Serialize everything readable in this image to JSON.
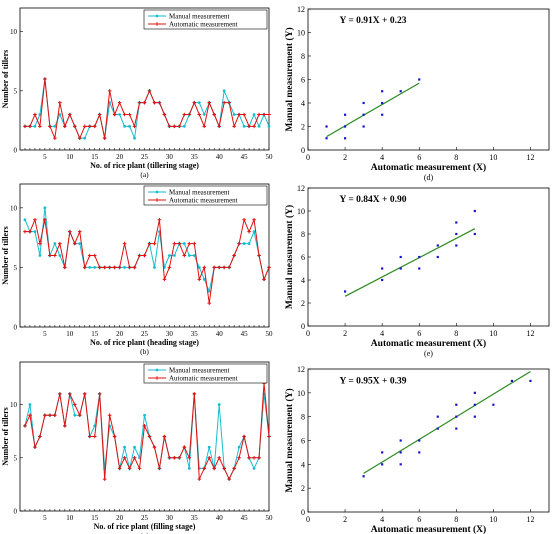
{
  "colors": {
    "manual": "#17becf",
    "automatic": "#e01010",
    "scatter": "#1515c8",
    "fit": "#2a8a1e"
  },
  "chart_data": [
    {
      "type": "line",
      "caption": "(a)",
      "xlabel": "No. of rice plant (tillering stage)",
      "ylabel": "Number of tillers",
      "xlim": [
        0,
        50
      ],
      "ylim": [
        0,
        12
      ],
      "xticks": [
        5,
        10,
        15,
        20,
        25,
        30,
        35,
        40,
        45,
        50
      ],
      "yticks": [
        0,
        5,
        10
      ],
      "legend": "top-right",
      "x": [
        1,
        2,
        3,
        4,
        5,
        6,
        7,
        8,
        9,
        10,
        11,
        12,
        13,
        14,
        15,
        16,
        17,
        18,
        19,
        20,
        21,
        22,
        23,
        24,
        25,
        26,
        27,
        28,
        29,
        30,
        31,
        32,
        33,
        34,
        35,
        36,
        37,
        38,
        39,
        40,
        41,
        42,
        43,
        44,
        45,
        46,
        47,
        48,
        49,
        50
      ],
      "series": [
        {
          "name": "Manual measurement",
          "values": [
            2,
            2,
            2,
            3,
            6,
            2,
            2,
            3,
            2,
            3,
            2,
            1,
            1,
            2,
            2,
            3,
            1,
            4,
            3,
            3,
            2,
            2,
            1,
            4,
            4,
            5,
            4,
            4,
            3,
            2,
            2,
            2,
            2,
            3,
            4,
            4,
            3,
            4,
            3,
            2,
            5,
            4,
            3,
            3,
            2,
            2,
            3,
            2,
            3,
            2
          ]
        },
        {
          "name": "Automatic measurement",
          "values": [
            2,
            2,
            3,
            2,
            6,
            2,
            1,
            4,
            2,
            3,
            2,
            1,
            2,
            2,
            2,
            3,
            1,
            5,
            3,
            4,
            3,
            3,
            2,
            4,
            4,
            5,
            4,
            4,
            3,
            2,
            2,
            2,
            3,
            3,
            4,
            3,
            2,
            4,
            3,
            2,
            4,
            4,
            2,
            3,
            3,
            2,
            2,
            3,
            3,
            3
          ]
        }
      ]
    },
    {
      "type": "scatter",
      "caption": "(d)",
      "equation": "Y = 0.91X + 0.23",
      "xlabel": "Automatic measurement (X)",
      "ylabel": "Manual measurement (Y)",
      "xlim": [
        0,
        13
      ],
      "ylim": [
        0,
        12
      ],
      "xticks": [
        0,
        2,
        4,
        6,
        8,
        10,
        12
      ],
      "yticks": [
        0,
        2,
        4,
        6,
        8,
        10,
        12
      ],
      "points": [
        [
          1,
          2
        ],
        [
          1,
          1
        ],
        [
          2,
          3
        ],
        [
          2,
          2
        ],
        [
          2,
          1
        ],
        [
          3,
          4
        ],
        [
          3,
          2
        ],
        [
          3,
          3
        ],
        [
          4,
          5
        ],
        [
          4,
          3
        ],
        [
          4,
          4
        ],
        [
          5,
          5
        ],
        [
          6,
          6
        ]
      ],
      "fit": {
        "slope": 0.91,
        "intercept": 0.23,
        "xrange": [
          1,
          6
        ]
      }
    },
    {
      "type": "line",
      "caption": "(b)",
      "xlabel": "No. of rice plant (heading stage)",
      "ylabel": "Number of tillers",
      "xlim": [
        0,
        50
      ],
      "ylim": [
        0,
        12
      ],
      "xticks": [
        5,
        10,
        15,
        20,
        25,
        30,
        35,
        40,
        45,
        50
      ],
      "yticks": [
        0,
        5,
        10
      ],
      "legend": "top-right",
      "x": [
        1,
        2,
        3,
        4,
        5,
        6,
        7,
        8,
        9,
        10,
        11,
        12,
        13,
        14,
        15,
        16,
        17,
        18,
        19,
        20,
        21,
        22,
        23,
        24,
        25,
        26,
        27,
        28,
        29,
        30,
        31,
        32,
        33,
        34,
        35,
        36,
        37,
        38,
        39,
        40,
        41,
        42,
        43,
        44,
        45,
        46,
        47,
        48,
        49,
        50
      ],
      "series": [
        {
          "name": "Manual measurement",
          "values": [
            9,
            8,
            8,
            6,
            10,
            6,
            7,
            6,
            5,
            8,
            7,
            7,
            5,
            5,
            5,
            5,
            5,
            5,
            5,
            5,
            5,
            5,
            5,
            6,
            6,
            7,
            5,
            8,
            5,
            6,
            6,
            7,
            7,
            6,
            6,
            5,
            4,
            3,
            5,
            5,
            5,
            5,
            6,
            7,
            7,
            7,
            8,
            6,
            4,
            5
          ]
        },
        {
          "name": "Automatic measurement",
          "values": [
            8,
            8,
            9,
            7,
            9,
            6,
            6,
            7,
            5,
            8,
            7,
            8,
            5,
            6,
            6,
            5,
            5,
            5,
            5,
            5,
            7,
            5,
            5,
            6,
            6,
            7,
            7,
            9,
            4,
            5,
            7,
            7,
            6,
            7,
            7,
            4,
            5,
            2,
            5,
            5,
            5,
            5,
            6,
            7,
            9,
            8,
            9,
            6,
            4,
            5
          ]
        }
      ]
    },
    {
      "type": "scatter",
      "caption": "(e)",
      "equation": "Y = 0.84X + 0.90",
      "xlabel": "Automatic measurement (X)",
      "ylabel": "Manual measurement (Y)",
      "xlim": [
        0,
        13
      ],
      "ylim": [
        0,
        12
      ],
      "xticks": [
        0,
        2,
        4,
        6,
        8,
        10,
        12
      ],
      "yticks": [
        0,
        2,
        4,
        6,
        8,
        10,
        12
      ],
      "points": [
        [
          2,
          3
        ],
        [
          4,
          5
        ],
        [
          4,
          4
        ],
        [
          5,
          6
        ],
        [
          5,
          5
        ],
        [
          6,
          6
        ],
        [
          6,
          5
        ],
        [
          7,
          7
        ],
        [
          7,
          6
        ],
        [
          8,
          9
        ],
        [
          8,
          8
        ],
        [
          8,
          7
        ],
        [
          9,
          10
        ],
        [
          9,
          8
        ]
      ],
      "fit": {
        "slope": 0.84,
        "intercept": 0.9,
        "xrange": [
          2,
          9
        ]
      }
    },
    {
      "type": "line",
      "caption": "(c)",
      "xlabel": "No. of rice plant (filling stage)",
      "ylabel": "Number of tillers",
      "xlim": [
        0,
        50
      ],
      "ylim": [
        0,
        14
      ],
      "xticks": [
        5,
        10,
        15,
        20,
        25,
        30,
        35,
        40,
        45,
        50
      ],
      "yticks": [
        0,
        5,
        10
      ],
      "legend": "top-right",
      "x": [
        1,
        2,
        3,
        4,
        5,
        6,
        7,
        8,
        9,
        10,
        11,
        12,
        13,
        14,
        15,
        16,
        17,
        18,
        19,
        20,
        21,
        22,
        23,
        24,
        25,
        26,
        27,
        28,
        29,
        30,
        31,
        32,
        33,
        34,
        35,
        36,
        37,
        38,
        39,
        40,
        41,
        42,
        43,
        44,
        45,
        46,
        47,
        48,
        49,
        50
      ],
      "series": [
        {
          "name": "Manual measurement",
          "values": [
            8,
            10,
            6,
            7,
            9,
            9,
            9,
            11,
            8,
            11,
            9,
            9,
            11,
            7,
            8,
            11,
            4,
            8,
            7,
            4,
            6,
            4,
            6,
            5,
            9,
            7,
            6,
            4,
            7,
            5,
            5,
            5,
            6,
            4,
            11,
            4,
            4,
            6,
            4,
            10,
            4,
            3,
            4,
            6,
            7,
            5,
            4,
            5,
            11,
            7
          ]
        },
        {
          "name": "Automatic measurement",
          "values": [
            8,
            9,
            6,
            7,
            9,
            9,
            9,
            11,
            8,
            11,
            10,
            9,
            11,
            7,
            7,
            11,
            3,
            9,
            7,
            4,
            5,
            4,
            5,
            4,
            8,
            7,
            6,
            4,
            7,
            5,
            5,
            5,
            6,
            5,
            11,
            3,
            4,
            5,
            4,
            5,
            4,
            3,
            4,
            5,
            7,
            5,
            5,
            5,
            12,
            7
          ]
        }
      ]
    },
    {
      "type": "scatter",
      "caption": "(f)",
      "equation": "Y = 0.95X + 0.39",
      "xlabel": "Automatic measurement (X)",
      "ylabel": "Manual measurement (Y)",
      "xlim": [
        0,
        13
      ],
      "ylim": [
        0,
        12
      ],
      "xticks": [
        0,
        2,
        4,
        6,
        8,
        10,
        12
      ],
      "yticks": [
        0,
        2,
        4,
        6,
        8,
        10,
        12
      ],
      "points": [
        [
          3,
          3
        ],
        [
          4,
          5
        ],
        [
          4,
          4
        ],
        [
          5,
          6
        ],
        [
          5,
          5
        ],
        [
          5,
          4
        ],
        [
          6,
          6
        ],
        [
          6,
          5
        ],
        [
          7,
          8
        ],
        [
          7,
          7
        ],
        [
          8,
          9
        ],
        [
          8,
          8
        ],
        [
          8,
          7
        ],
        [
          9,
          10
        ],
        [
          9,
          9
        ],
        [
          9,
          8
        ],
        [
          10,
          9
        ],
        [
          11,
          11
        ],
        [
          12,
          11
        ]
      ],
      "fit": {
        "slope": 0.95,
        "intercept": 0.39,
        "xrange": [
          3,
          12
        ]
      }
    }
  ]
}
